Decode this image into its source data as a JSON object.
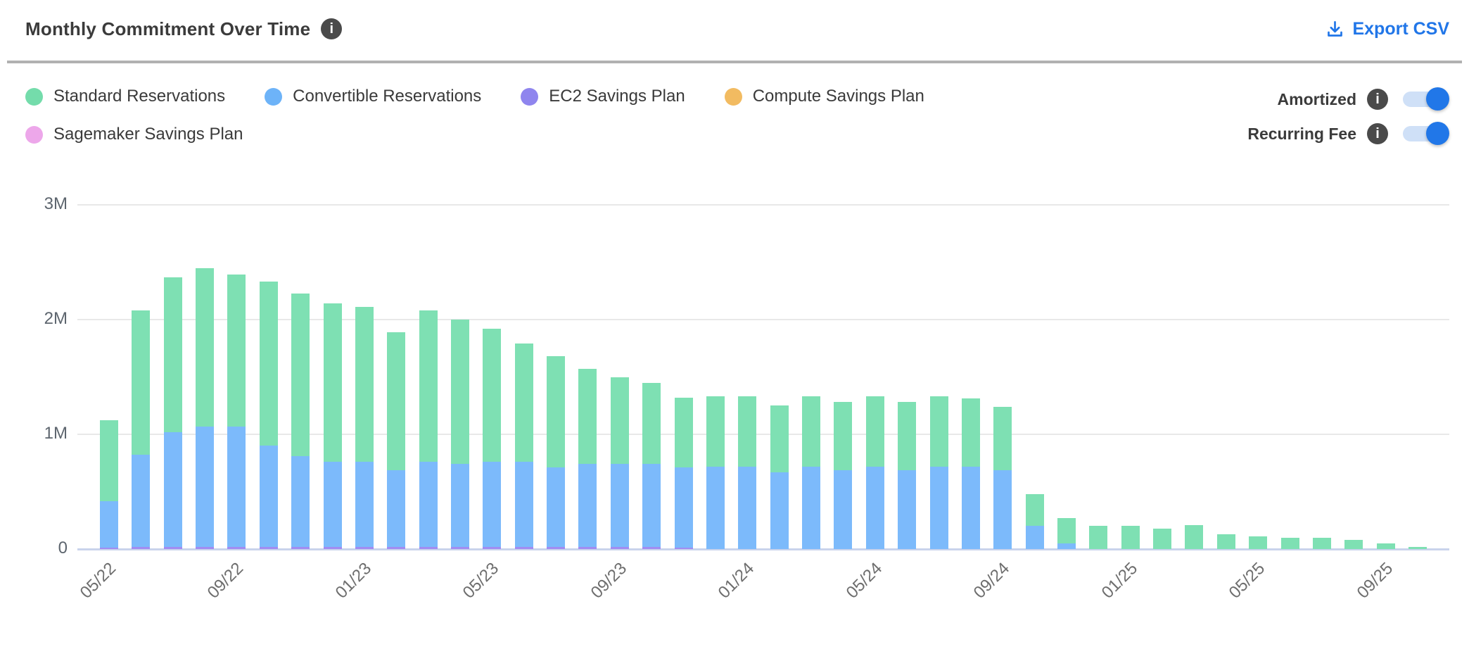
{
  "header": {
    "title": "Monthly Commitment Over Time",
    "export_label": "Export CSV"
  },
  "toggles": [
    {
      "label": "Amortized",
      "state": "on"
    },
    {
      "label": "Recurring Fee",
      "state": "on"
    }
  ],
  "colors": {
    "accent_blue": "#2176e8",
    "toggle_track": "#cfe0f7",
    "info_icon_bg": "#4a4a4a",
    "divider": "#b1b1b1",
    "gridline": "#e8e8e8",
    "zero_line": "#c9d3ec",
    "axis_text": "#6e6e6e"
  },
  "legend": {
    "items": [
      {
        "label": "Standard Reservations",
        "color": "#74dcab"
      },
      {
        "label": "Convertible Reservations",
        "color": "#6db3f8"
      },
      {
        "label": "EC2 Savings Plan",
        "color": "#8f85ee"
      },
      {
        "label": "Compute Savings Plan",
        "color": "#f2bb61"
      },
      {
        "label": "Sagemaker Savings Plan",
        "color": "#eda7ea"
      }
    ]
  },
  "chart_data": {
    "type": "bar",
    "stacked": true,
    "title": "Monthly Commitment Over Time",
    "unit": "USD millions",
    "ylim": [
      0,
      3
    ],
    "y_ticks": {
      "values": [
        0,
        1,
        2,
        3
      ],
      "labels": [
        "0",
        "1M",
        "2M",
        "3M"
      ]
    },
    "grid": true,
    "legend_position": "top",
    "x_tick_indices": [
      0,
      4,
      8,
      12,
      16,
      20,
      24,
      28,
      32,
      36,
      40
    ],
    "x_tick_labels": [
      "05/22",
      "09/22",
      "01/23",
      "05/23",
      "09/23",
      "01/24",
      "05/24",
      "09/24",
      "01/25",
      "05/25",
      "09/25"
    ],
    "categories": [
      "05/22",
      "06/22",
      "07/22",
      "08/22",
      "09/22",
      "10/22",
      "11/22",
      "12/22",
      "01/23",
      "02/23",
      "03/23",
      "04/23",
      "05/23",
      "06/23",
      "07/23",
      "08/23",
      "09/23",
      "10/23",
      "11/23",
      "12/23",
      "01/24",
      "02/24",
      "03/24",
      "04/24",
      "05/24",
      "06/24",
      "07/24",
      "08/24",
      "09/24",
      "10/24",
      "11/24",
      "12/24",
      "01/25",
      "02/25",
      "03/25",
      "04/25",
      "05/25",
      "06/25",
      "07/25",
      "08/25",
      "09/25",
      "10/25"
    ],
    "stack_order_bottom_to_top": [
      "EC2 Savings Plan",
      "Convertible Reservations",
      "Standard Reservations"
    ],
    "series": [
      {
        "name": "Standard Reservations",
        "color": "#7ee0b3",
        "values_m": [
          0.7,
          1.26,
          1.35,
          1.38,
          1.32,
          1.43,
          1.42,
          1.38,
          1.35,
          1.2,
          1.32,
          1.26,
          1.16,
          1.03,
          0.97,
          0.83,
          0.76,
          0.71,
          0.61,
          0.61,
          0.61,
          0.58,
          0.61,
          0.59,
          0.61,
          0.59,
          0.61,
          0.59,
          0.55,
          0.28,
          0.22,
          0.2,
          0.2,
          0.18,
          0.21,
          0.13,
          0.11,
          0.1,
          0.1,
          0.08,
          0.05,
          0.02
        ]
      },
      {
        "name": "Convertible Reservations",
        "color": "#7cbafb",
        "values_m": [
          0.41,
          0.8,
          1.0,
          1.05,
          1.05,
          0.88,
          0.79,
          0.74,
          0.74,
          0.67,
          0.74,
          0.72,
          0.74,
          0.74,
          0.69,
          0.72,
          0.72,
          0.72,
          0.7,
          0.72,
          0.72,
          0.67,
          0.72,
          0.69,
          0.72,
          0.69,
          0.72,
          0.72,
          0.69,
          0.2,
          0.05,
          0,
          0,
          0,
          0,
          0,
          0,
          0,
          0,
          0,
          0,
          0
        ]
      },
      {
        "name": "EC2 Savings Plan",
        "color": "#a18cf2",
        "values_m": [
          0.01,
          0.02,
          0.02,
          0.02,
          0.02,
          0.02,
          0.02,
          0.02,
          0.02,
          0.02,
          0.02,
          0.02,
          0.02,
          0.02,
          0.02,
          0.02,
          0.02,
          0.02,
          0.01,
          0,
          0,
          0,
          0,
          0,
          0,
          0,
          0,
          0,
          0,
          0,
          0,
          0,
          0,
          0,
          0,
          0,
          0,
          0,
          0,
          0,
          0,
          0
        ]
      },
      {
        "name": "Compute Savings Plan",
        "color": "#f2bb61",
        "values_m": [
          0,
          0,
          0,
          0,
          0,
          0,
          0,
          0,
          0,
          0,
          0,
          0,
          0,
          0,
          0,
          0,
          0,
          0,
          0,
          0,
          0,
          0,
          0,
          0,
          0,
          0,
          0,
          0,
          0,
          0,
          0,
          0,
          0,
          0,
          0,
          0,
          0,
          0,
          0,
          0,
          0,
          0
        ]
      },
      {
        "name": "Sagemaker Savings Plan",
        "color": "#eda7ea",
        "values_m": [
          0,
          0,
          0,
          0,
          0,
          0,
          0,
          0,
          0,
          0,
          0,
          0,
          0,
          0,
          0,
          0,
          0,
          0,
          0,
          0,
          0,
          0,
          0,
          0,
          0,
          0,
          0,
          0,
          0,
          0,
          0,
          0,
          0,
          0,
          0,
          0,
          0,
          0,
          0,
          0,
          0,
          0
        ]
      }
    ]
  }
}
